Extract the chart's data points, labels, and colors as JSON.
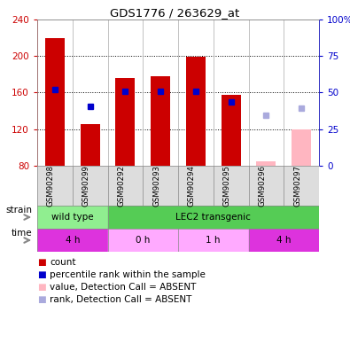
{
  "title": "GDS1776 / 263629_at",
  "samples": [
    "GSM90298",
    "GSM90299",
    "GSM90292",
    "GSM90293",
    "GSM90294",
    "GSM90295",
    "GSM90296",
    "GSM90297"
  ],
  "bar_bottom": 80,
  "counts": [
    220,
    126,
    176,
    178,
    199,
    158,
    null,
    120
  ],
  "ranks": [
    163,
    145,
    161,
    161,
    161,
    150,
    null,
    null
  ],
  "absent_counts": [
    null,
    null,
    null,
    null,
    null,
    null,
    85,
    120
  ],
  "absent_ranks": [
    null,
    null,
    null,
    null,
    null,
    null,
    135,
    143
  ],
  "ylim_left": [
    80,
    240
  ],
  "ylim_right": [
    0,
    100
  ],
  "yticks_left": [
    80,
    120,
    160,
    200,
    240
  ],
  "yticks_right": [
    0,
    25,
    50,
    75,
    100
  ],
  "ytick_labels_right": [
    "0",
    "25",
    "50",
    "75",
    "100%"
  ],
  "bar_color": "#CC0000",
  "absent_bar_color": "#FFB6C1",
  "rank_color": "#0000CC",
  "absent_rank_color": "#AAAADD",
  "bar_width": 0.55,
  "legend_items": [
    {
      "label": "count",
      "color": "#CC0000"
    },
    {
      "label": "percentile rank within the sample",
      "color": "#0000CC"
    },
    {
      "label": "value, Detection Call = ABSENT",
      "color": "#FFB6C1"
    },
    {
      "label": "rank, Detection Call = ABSENT",
      "color": "#AAAADD"
    }
  ]
}
